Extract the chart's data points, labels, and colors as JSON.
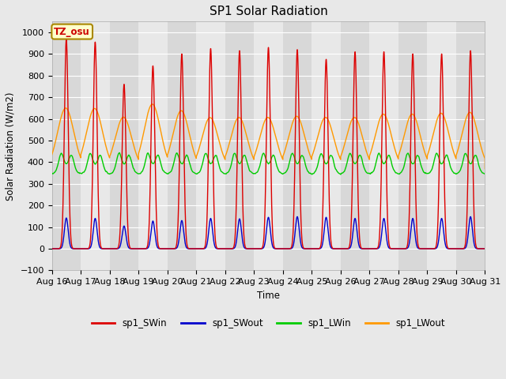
{
  "title": "SP1 Solar Radiation",
  "xlabel": "Time",
  "ylabel": "Solar Radiation (W/m2)",
  "ylim": [
    -100,
    1050
  ],
  "n_days": 15,
  "tick_labels": [
    "Aug 16",
    "Aug 17",
    "Aug 18",
    "Aug 19",
    "Aug 20",
    "Aug 21",
    "Aug 22",
    "Aug 23",
    "Aug 24",
    "Aug 25",
    "Aug 26",
    "Aug 27",
    "Aug 28",
    "Aug 29",
    "Aug 30",
    "Aug 31"
  ],
  "colors": {
    "SWin": "#dd0000",
    "SWout": "#0000cc",
    "LWin": "#00cc00",
    "LWout": "#ff9900"
  },
  "legend_labels": [
    "sp1_SWin",
    "sp1_SWout",
    "sp1_LWin",
    "sp1_LWout"
  ],
  "tz_label": "TZ_osu",
  "bg_color": "#e8e8e8",
  "plot_bg": "#e8e8e8",
  "band_light": "#e8e8e8",
  "band_dark": "#d8d8d8",
  "SWin_peaks": [
    970,
    955,
    760,
    845,
    900,
    925,
    915,
    930,
    920,
    875,
    910,
    910,
    900,
    900,
    915
  ],
  "SWout_peaks": [
    142,
    140,
    105,
    128,
    130,
    140,
    138,
    145,
    148,
    145,
    140,
    140,
    140,
    140,
    148
  ],
  "LWout_peaks": [
    650,
    648,
    608,
    668,
    638,
    606,
    607,
    607,
    612,
    607,
    607,
    622,
    622,
    626,
    630
  ],
  "LWout_night": 370,
  "LWin_base": 340,
  "LWin_peak": 425
}
